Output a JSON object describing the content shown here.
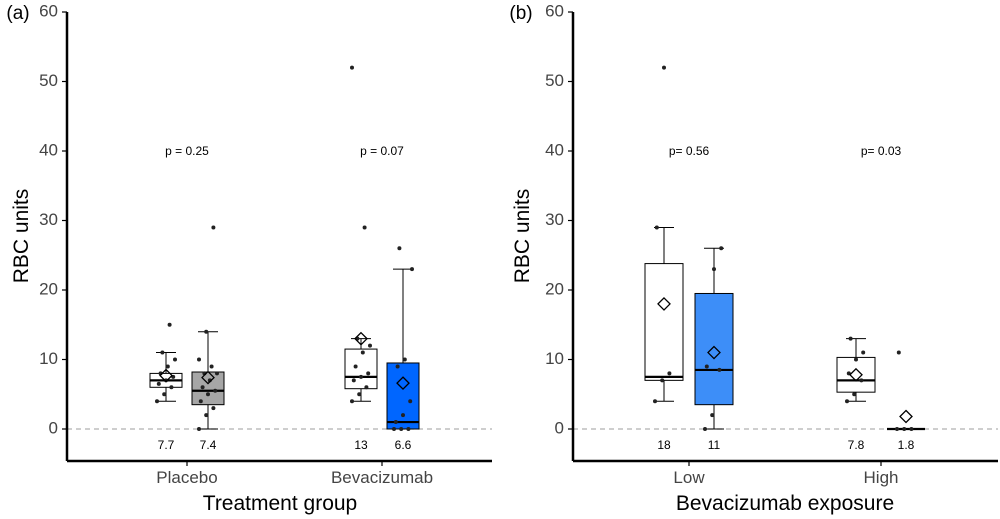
{
  "chart_data": [
    {
      "type": "box",
      "panel_label": "(a)",
      "xlabel": "Treatment group",
      "ylabel": "RBC units",
      "ylim": [
        0,
        60
      ],
      "yticks": [
        0,
        10,
        20,
        30,
        40,
        50,
        60
      ],
      "categories": [
        "Placebo",
        "Bevacizumab"
      ],
      "p_values": [
        "p = 0.25",
        "p = 0.07"
      ],
      "reference_line_y": 0,
      "boxes": [
        {
          "category": "Placebo",
          "color": "#ffffff",
          "q1": 6.0,
          "median": 7.0,
          "q3": 8.0,
          "whisker_low": 4,
          "whisker_high": 11,
          "mean": 7.7,
          "mean_label": "7.7",
          "points": [
            4,
            5,
            6,
            6.5,
            7,
            7.5,
            8,
            9,
            10,
            11,
            15
          ]
        },
        {
          "category": "Placebo",
          "color": "#a6a6a6",
          "q1": 3.5,
          "median": 5.5,
          "q3": 8.2,
          "whisker_low": 0,
          "whisker_high": 14,
          "mean": 7.4,
          "mean_label": "7.4",
          "points": [
            0,
            2,
            3,
            4,
            5,
            5.5,
            6,
            7,
            8,
            8,
            9,
            10,
            14,
            29
          ]
        },
        {
          "category": "Bevacizumab",
          "color": "#ffffff",
          "q1": 5.8,
          "median": 7.5,
          "q3": 11.5,
          "whisker_low": 4,
          "whisker_high": 13,
          "mean": 13,
          "mean_label": "13",
          "points": [
            4,
            5,
            6,
            7,
            7.5,
            8,
            9,
            11,
            12,
            13,
            29,
            52
          ]
        },
        {
          "category": "Bevacizumab",
          "color": "#0066ff",
          "q1": 0.0,
          "median": 1.0,
          "q3": 9.5,
          "whisker_low": 0,
          "whisker_high": 23,
          "mean": 6.6,
          "mean_label": "6.6",
          "points": [
            0,
            0,
            0,
            1,
            2,
            4,
            9,
            10,
            23,
            26
          ]
        }
      ]
    },
    {
      "type": "box",
      "panel_label": "(b)",
      "xlabel": "Bevacizumab exposure",
      "ylabel": "RBC units",
      "ylim": [
        0,
        60
      ],
      "yticks": [
        0,
        10,
        20,
        30,
        40,
        50,
        60
      ],
      "categories": [
        "Low",
        "High"
      ],
      "p_values": [
        "p= 0.56",
        "p= 0.03"
      ],
      "reference_line_y": 0,
      "boxes": [
        {
          "category": "Low",
          "color": "#ffffff",
          "q1": 7.0,
          "median": 7.5,
          "q3": 23.8,
          "whisker_low": 4,
          "whisker_high": 29,
          "mean": 18,
          "mean_label": "18",
          "points": [
            4,
            7,
            8,
            29,
            52
          ]
        },
        {
          "category": "Low",
          "color": "#3d8ef8",
          "q1": 3.5,
          "median": 8.5,
          "q3": 19.5,
          "whisker_low": 0,
          "whisker_high": 26,
          "mean": 11,
          "mean_label": "11",
          "points": [
            0,
            2,
            8.5,
            9,
            23,
            26
          ]
        },
        {
          "category": "High",
          "color": "#ffffff",
          "q1": 5.3,
          "median": 7.0,
          "q3": 10.3,
          "whisker_low": 4,
          "whisker_high": 13,
          "mean": 7.8,
          "mean_label": "7.8",
          "points": [
            4,
            5,
            7,
            8,
            10,
            11,
            13
          ]
        },
        {
          "category": "High",
          "color": "#ffffff",
          "q1": 0.0,
          "median": 0.0,
          "q3": 0.0,
          "whisker_low": 0,
          "whisker_high": 0,
          "mean": 1.8,
          "mean_label": "1.8",
          "points": [
            0,
            0,
            0,
            11
          ]
        }
      ]
    }
  ]
}
